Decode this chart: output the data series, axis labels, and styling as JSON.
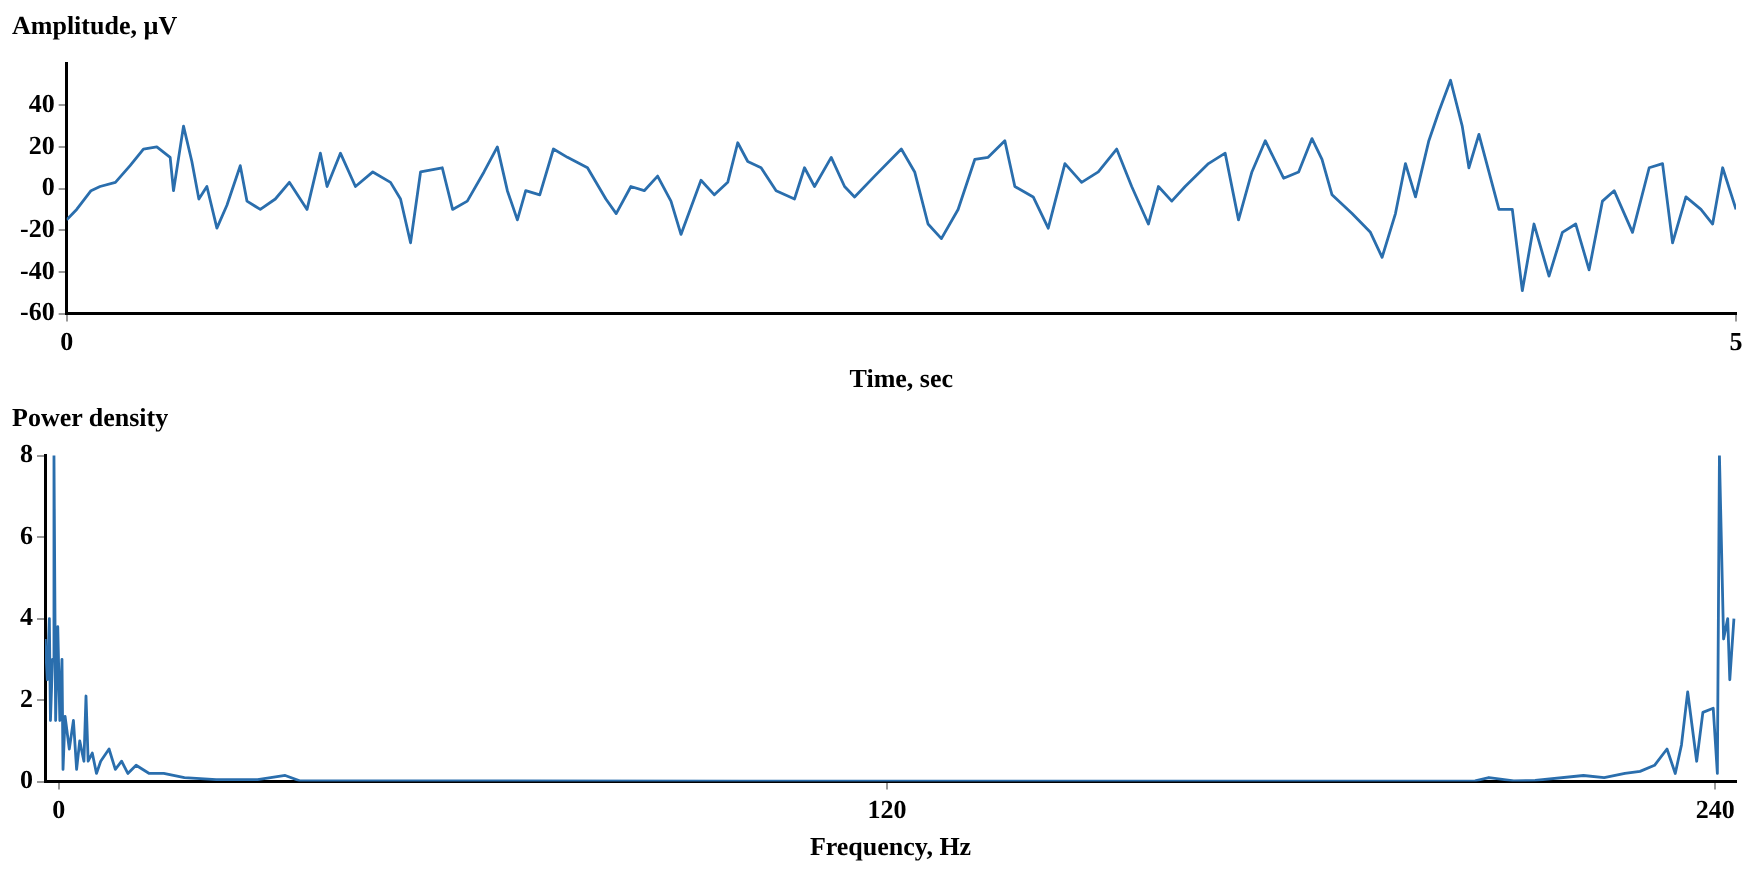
{
  "chart_data": [
    {
      "type": "line",
      "ylabel": "Amplitude, µV",
      "xlabel": "Time, sec",
      "xlim": [
        0,
        5
      ],
      "xticks": [
        0,
        5
      ],
      "ylim": [
        -60,
        60
      ],
      "yticks": [
        -60,
        -40,
        -20,
        0,
        20,
        40
      ],
      "grid": false,
      "legend": false,
      "marker": "none",
      "line_style": "solid",
      "series": [
        {
          "color": "#2a6ead",
          "x": [
            0,
            0.03,
            0.073,
            0.1,
            0.146,
            0.19,
            0.23,
            0.27,
            0.31,
            0.32,
            0.35,
            0.375,
            0.396,
            0.42,
            0.45,
            0.48,
            0.52,
            0.54,
            0.58,
            0.625,
            0.667,
            0.72,
            0.76,
            0.78,
            0.82,
            0.865,
            0.917,
            0.97,
            1.0,
            1.03,
            1.06,
            1.125,
            1.156,
            1.2,
            1.25,
            1.29,
            1.32,
            1.35,
            1.375,
            1.417,
            1.458,
            1.5,
            1.56,
            1.615,
            1.646,
            1.69,
            1.73,
            1.77,
            1.81,
            1.84,
            1.9,
            1.94,
            1.98,
            2.01,
            2.04,
            2.08,
            2.125,
            2.18,
            2.21,
            2.24,
            2.29,
            2.33,
            2.36,
            2.42,
            2.5,
            2.54,
            2.58,
            2.62,
            2.67,
            2.72,
            2.76,
            2.81,
            2.84,
            2.895,
            2.94,
            2.99,
            3.04,
            3.09,
            3.145,
            3.19,
            3.24,
            3.27,
            3.31,
            3.35,
            3.42,
            3.47,
            3.51,
            3.55,
            3.59,
            3.645,
            3.69,
            3.73,
            3.76,
            3.79,
            3.85,
            3.905,
            3.94,
            3.98,
            4.01,
            4.04,
            4.08,
            4.11,
            4.145,
            4.18,
            4.2,
            4.23,
            4.26,
            4.29,
            4.33,
            4.36,
            4.395,
            4.44,
            4.48,
            4.52,
            4.56,
            4.6,
            4.635,
            4.69,
            4.74,
            4.78,
            4.81,
            4.85,
            4.895,
            4.93,
            4.96,
            5.0
          ],
          "values": [
            -15,
            -10,
            -1,
            1,
            3,
            11,
            19,
            20,
            15,
            -1,
            30,
            13,
            -5,
            1,
            -19,
            -8,
            11,
            -6,
            -10,
            -5,
            3,
            -10,
            17,
            1,
            17,
            1,
            8,
            3,
            -5,
            -26,
            8,
            10,
            -10,
            -6,
            8,
            20,
            -1,
            -15,
            -1,
            -3,
            19,
            15,
            10,
            -5,
            -12,
            1,
            -1,
            6,
            -6,
            -22,
            4,
            -3,
            3,
            22,
            13,
            10,
            -1,
            -5,
            10,
            1,
            15,
            1,
            -4,
            6,
            19,
            8,
            -17,
            -24,
            -10,
            14,
            15,
            23,
            1,
            -4,
            -19,
            12,
            3,
            8,
            19,
            1,
            -17,
            1,
            -6,
            1,
            12,
            17,
            -15,
            8,
            23,
            5,
            8,
            24,
            14,
            -3,
            -12,
            -21,
            -33,
            -12,
            12,
            -4,
            23,
            37,
            52,
            30,
            10,
            26,
            8,
            -10,
            -10,
            -49,
            -17,
            -42,
            -21,
            -17,
            -39,
            -6,
            -1,
            -21,
            10,
            12,
            -26,
            -4,
            -10,
            -17,
            10,
            -10
          ]
        }
      ]
    },
    {
      "type": "line",
      "ylabel": "Power density",
      "xlabel": "Frequency, Hz",
      "xlim": [
        -2,
        243
      ],
      "xticks": [
        0,
        120,
        240
      ],
      "ylim": [
        0,
        8
      ],
      "yticks": [
        0,
        2,
        4,
        6,
        8
      ],
      "grid": false,
      "legend": false,
      "marker": "none",
      "line_style": "solid",
      "series": [
        {
          "color": "#2a6ead",
          "x": [
            -1.97,
            -1.67,
            -1.37,
            -1.21,
            -0.91,
            -0.7,
            -0.46,
            -0.15,
            0.15,
            0.46,
            0.61,
            0.91,
            1.52,
            2.12,
            2.58,
            3.03,
            3.64,
            3.94,
            4.25,
            4.85,
            5.46,
            6.07,
            7.28,
            8.19,
            9.1,
            10.0,
            11.2,
            13.1,
            15.2,
            18.2,
            22.8,
            28.8,
            32.8,
            34.9,
            44,
            98.6,
            159.3,
            205.2,
            207.2,
            210.8,
            213.9,
            220.9,
            223.9,
            226.9,
            229.1,
            231.2,
            233,
            234.2,
            235.1,
            236,
            237.3,
            238.2,
            239.7,
            240.3,
            240.6,
            241.2,
            241.8,
            242.1,
            242.7
          ],
          "values": [
            3.5,
            2.5,
            4,
            1.5,
            3,
            8,
            1.5,
            3.8,
            1.5,
            3,
            0.3,
            1.6,
            0.8,
            1.5,
            0.3,
            1,
            0.5,
            2.1,
            0.5,
            0.7,
            0.2,
            0.5,
            0.8,
            0.3,
            0.5,
            0.2,
            0.4,
            0.2,
            0.2,
            0.1,
            0.05,
            0.05,
            0.15,
            0.02,
            0.02,
            0.01,
            0.01,
            0.02,
            0.1,
            0.02,
            0.03,
            0.15,
            0.1,
            0.2,
            0.25,
            0.4,
            0.8,
            0.2,
            0.9,
            2.2,
            0.5,
            1.7,
            1.8,
            0.2,
            8,
            3.5,
            4,
            2.5,
            4
          ]
        }
      ]
    }
  ]
}
